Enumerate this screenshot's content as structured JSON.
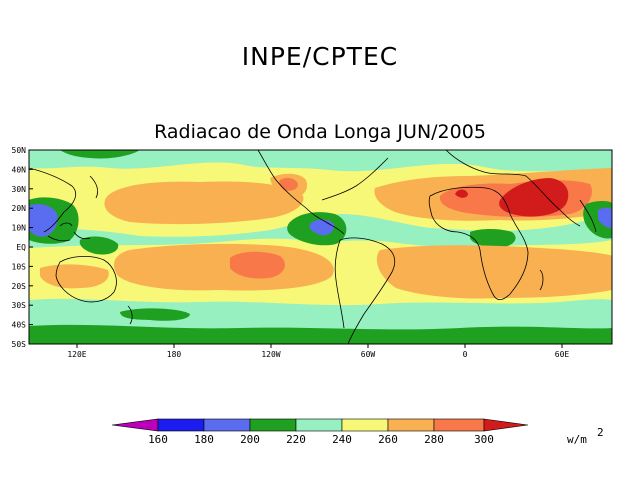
{
  "header": {
    "title": "INPE/CPTEC",
    "subtitle": "Radiacao de Onda Longa JUN/2005"
  },
  "map": {
    "lat_labels": [
      "50N",
      "40N",
      "30N",
      "20N",
      "10N",
      "EQ",
      "10S",
      "20S",
      "30S",
      "40S",
      "50S"
    ],
    "lon_labels": [
      "120E",
      "180",
      "120W",
      "60W",
      "0",
      "60E"
    ]
  },
  "colorbar": {
    "labels": [
      "160",
      "180",
      "200",
      "220",
      "240",
      "260",
      "280",
      "300"
    ],
    "unit": "w/m",
    "unit_exp": "2",
    "colors": [
      "#bb00bb",
      "#1c1cf0",
      "#5a6cf0",
      "#20a020",
      "#96f0c0",
      "#f8f878",
      "#f8b050",
      "#f8784a",
      "#d21c1c"
    ]
  },
  "palette": {
    "c200": "#20a020",
    "c220": "#96f0c0",
    "c240": "#f8f878",
    "c260": "#f8b050",
    "c280": "#f8784a",
    "c300": "#d21c1c",
    "c180": "#5a6cf0",
    "c160": "#1c1cf0"
  }
}
